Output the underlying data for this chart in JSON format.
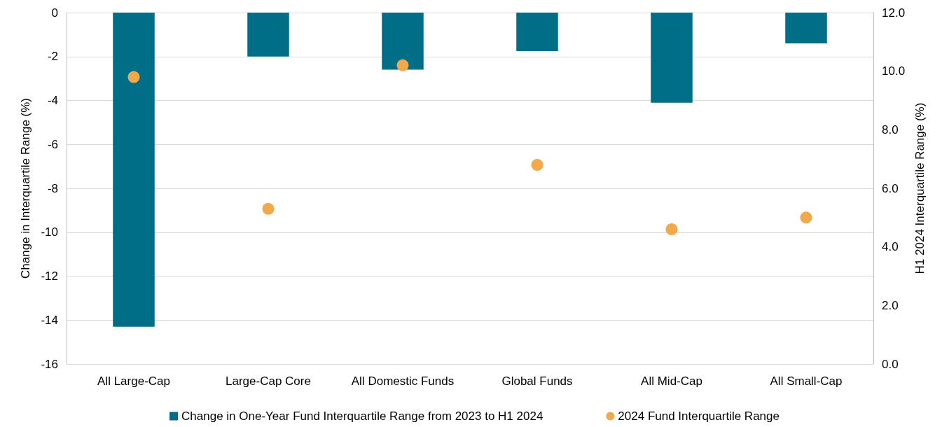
{
  "chart_data": {
    "type": "bar",
    "ylabel": "Change in Interquartile Range (%)",
    "y2label": "H1 2024 Interquartile Range (%)",
    "categories": [
      "All Large-Cap",
      "Large-Cap Core",
      "All Domestic Funds",
      "Global Funds",
      "All Mid-Cap",
      "All Small-Cap"
    ],
    "series": [
      {
        "name": "Change in One-Year Fund Interquartile Range from 2023 to H1 2024",
        "color": "#006e87",
        "values": [
          -14.3,
          -2.0,
          -2.6,
          -1.75,
          -4.1,
          -1.4
        ]
      },
      {
        "name": "2024 Fund Interquartile Range",
        "type": "scatter",
        "axis": "y2",
        "color": "#f2a94b",
        "marker": "circle",
        "values": [
          9.8,
          5.3,
          10.2,
          6.8,
          4.6,
          5.0
        ]
      }
    ],
    "ylim": [
      -16,
      0
    ],
    "yticks": [
      -16,
      -14,
      -12,
      -10,
      -8,
      -6,
      -4,
      -2,
      0
    ],
    "y2lim": [
      0,
      12
    ],
    "y2ticks": [
      {
        "value": 0,
        "label": "0.0"
      },
      {
        "value": 2,
        "label": "2.0"
      },
      {
        "value": 4,
        "label": "4.0"
      },
      {
        "value": 6,
        "label": "6.0"
      },
      {
        "value": 8,
        "label": "8.0"
      },
      {
        "value": 10,
        "label": "10.0"
      },
      {
        "value": 12,
        "label": "12.0"
      }
    ],
    "grid": "y",
    "legend": "bottom"
  }
}
